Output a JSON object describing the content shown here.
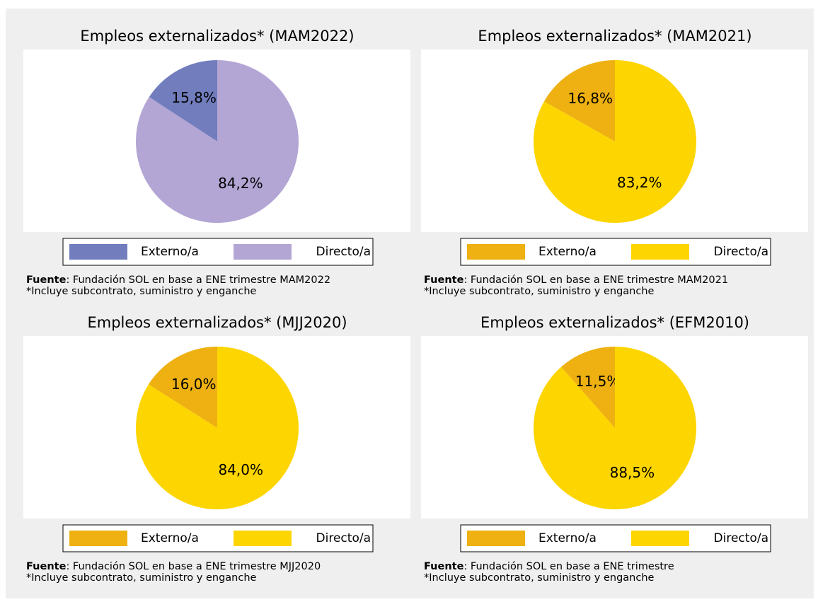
{
  "chart_data": [
    {
      "type": "pie",
      "title": "Empleos externalizados* (MAM2022)",
      "categories": [
        "Externo/a",
        "Directo/a"
      ],
      "values": [
        15.8,
        84.2
      ],
      "value_labels": [
        "15,8%",
        "84,2%"
      ],
      "colors": [
        "#717dbd",
        "#b3a6d5"
      ],
      "source_label": "Fuente",
      "source": ": Fundación SOL en base a ENE trimestre MAM2022",
      "note": "*Incluye subcontrato, suministro y enganche"
    },
    {
      "type": "pie",
      "title": "Empleos externalizados* (MAM2021)",
      "categories": [
        "Externo/a",
        "Directo/a"
      ],
      "values": [
        16.8,
        83.2
      ],
      "value_labels": [
        "16,8%",
        "83,2%"
      ],
      "colors": [
        "#eeb111",
        "#fdd500"
      ],
      "source_label": "Fuente",
      "source": ": Fundación SOL en base a ENE trimestre MAM2021",
      "note": "*Incluye subcontrato, suministro y enganche"
    },
    {
      "type": "pie",
      "title": "Empleos externalizados* (MJJ2020)",
      "categories": [
        "Externo/a",
        "Directo/a"
      ],
      "values": [
        16.0,
        84.0
      ],
      "value_labels": [
        "16,0%",
        "84,0%"
      ],
      "colors": [
        "#eeb111",
        "#fdd500"
      ],
      "source_label": "Fuente",
      "source": ": Fundación SOL en base a ENE trimestre MJJ2020",
      "note": "*Incluye subcontrato, suministro y enganche"
    },
    {
      "type": "pie",
      "title": "Empleos externalizados* (EFM2010)",
      "categories": [
        "Externo/a",
        "Directo/a"
      ],
      "values": [
        11.5,
        88.5
      ],
      "value_labels": [
        "11,5%",
        "88,5%"
      ],
      "colors": [
        "#eeb111",
        "#fdd500"
      ],
      "source_label": "Fuente",
      "source": ": Fundación SOL en base a ENE trimestre",
      "note": "*Incluye subcontrato, suministro y enganche"
    }
  ]
}
